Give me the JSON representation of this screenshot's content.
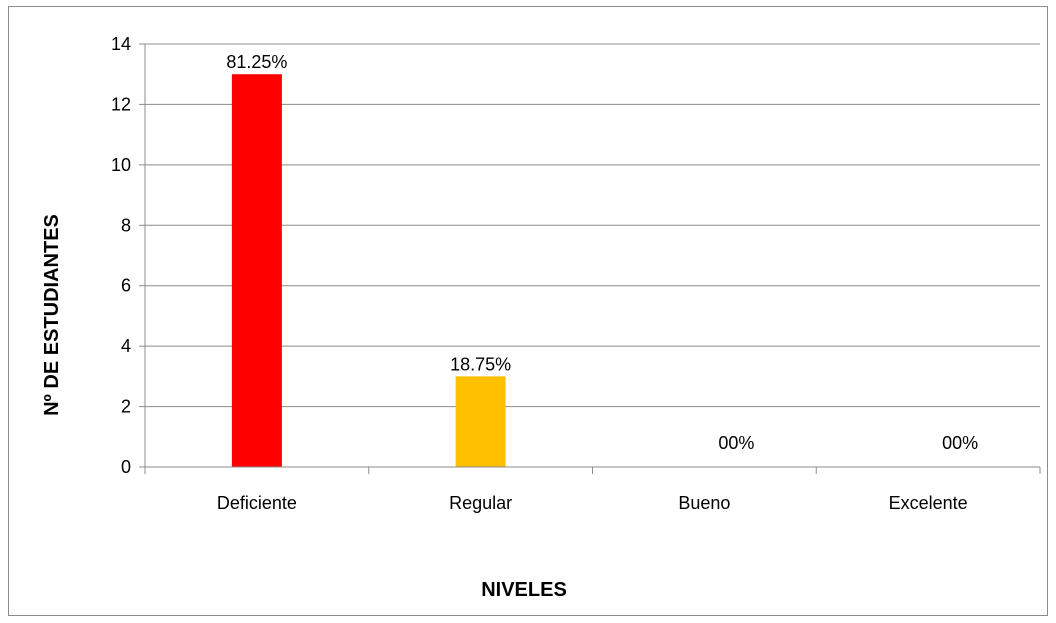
{
  "chart_data": {
    "type": "bar",
    "categories": [
      "Deficiente",
      "Regular",
      "Bueno",
      "Excelente"
    ],
    "values": [
      13,
      3,
      0,
      0
    ],
    "data_labels": [
      "81.25%",
      "18.75%",
      "00%",
      "00%"
    ],
    "colors": [
      "#ff0000",
      "#ffc000",
      "#4f81bd",
      "#4f81bd"
    ],
    "title": "",
    "xlabel": "NIVELES",
    "ylabel": "Nº DE ESTUDIANTES",
    "ylim": [
      0,
      14
    ],
    "yticks": [
      0,
      2,
      4,
      6,
      8,
      10,
      12,
      14
    ],
    "grid": true,
    "legend": "none"
  }
}
